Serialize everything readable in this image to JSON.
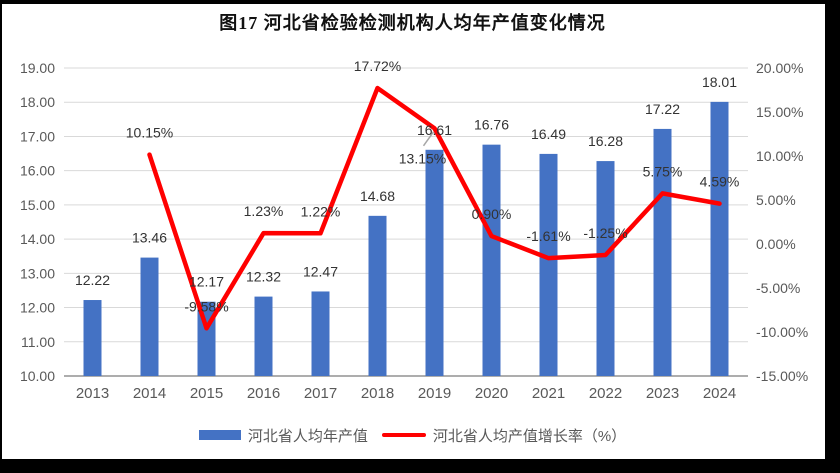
{
  "colors": {
    "bar": "#4472C4",
    "line": "#FF0000",
    "axis_text": "#595959",
    "data_label": "#333333",
    "gridline": "#D9D9D9",
    "axis_line": "#ADADAD",
    "leader_line": "#A6A6A6",
    "border": "#000000",
    "background": "#FFFFFF"
  },
  "chart_data": {
    "type": "bar+line combo",
    "title": "图17 河北省检验检测机构人均年产值变化情况",
    "categories": [
      "2013",
      "2014",
      "2015",
      "2016",
      "2017",
      "2018",
      "2019",
      "2020",
      "2021",
      "2022",
      "2023",
      "2024"
    ],
    "series": [
      {
        "name": "河北省人均年产值",
        "type": "bar",
        "axis": "left",
        "color": "#4472C4",
        "values": [
          12.22,
          13.46,
          12.17,
          12.32,
          12.47,
          14.68,
          16.61,
          16.76,
          16.49,
          16.28,
          17.22,
          18.01
        ],
        "labels": [
          "12.22",
          "13.46",
          "12.17",
          "12.32",
          "12.47",
          "14.68",
          "16.61",
          "16.76",
          "16.49",
          "16.28",
          "17.22",
          "18.01"
        ],
        "callout_index": 6
      },
      {
        "name": "河北省人均产值增长率（%）",
        "type": "line",
        "axis": "right",
        "color": "#FF0000",
        "values": [
          null,
          10.15,
          -9.58,
          1.23,
          1.22,
          17.72,
          13.15,
          0.9,
          -1.61,
          -1.25,
          5.75,
          4.59
        ],
        "labels": [
          null,
          "10.15%",
          "-9.58%",
          "1.23%",
          "1.22%",
          "17.72%",
          "13.15%",
          "0.90%",
          "-1.61%",
          "-1.25%",
          "5.75%",
          "4.59%"
        ],
        "label_placement": [
          "above",
          "above",
          "above",
          "above",
          "above",
          "above",
          "below",
          "above",
          "above",
          "above",
          "above",
          "above"
        ]
      }
    ],
    "left_axis": {
      "min": 10,
      "max": 19,
      "step": 1,
      "ticks": [
        "19.00",
        "18.00",
        "17.00",
        "16.00",
        "15.00",
        "14.00",
        "13.00",
        "12.00",
        "11.00",
        "10.00"
      ]
    },
    "right_axis": {
      "min": -15,
      "max": 20,
      "step": 5,
      "ticks": [
        "20.00%",
        "15.00%",
        "10.00%",
        "5.00%",
        "0.00%",
        "-5.00%",
        "-10.00%",
        "-15.00%"
      ]
    },
    "grid": true,
    "legend_position": "bottom"
  }
}
